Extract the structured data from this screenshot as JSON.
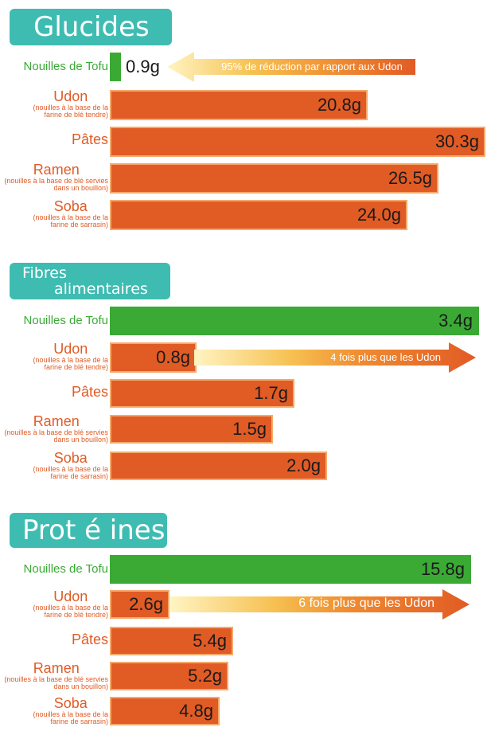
{
  "chart_data": [
    {
      "type": "bar",
      "title": "Glucides",
      "unit": "g",
      "categories": [
        "Nouilles de Tofu",
        "Udon",
        "Pâtes",
        "Ramen",
        "Soba"
      ],
      "subtitles": [
        "",
        "(nouilles à la base de la farine de blé tendre)",
        "",
        "(nouilles à la base de blé servies dans un bouillon)",
        "(nouilles à la base de la farine de sarrasin)"
      ],
      "values": [
        0.9,
        20.8,
        30.3,
        26.5,
        24.0
      ],
      "value_labels": [
        "0.9g",
        "20.8g",
        "30.3g",
        "26.5g",
        "24.0g"
      ],
      "annotation": "95% de réduction par rapport aux Udon",
      "colors": [
        "#3aaa35",
        "#e15b25",
        "#e15b25",
        "#e15b25",
        "#e15b25"
      ]
    },
    {
      "type": "bar",
      "title": "Fibres alimentaires",
      "title_lines": [
        "Fibres",
        "alimentaires"
      ],
      "unit": "g",
      "categories": [
        "Nouilles de Tofu",
        "Udon",
        "Pâtes",
        "Ramen",
        "Soba"
      ],
      "subtitles": [
        "",
        "(nouilles à la base de la farine de blé tendre)",
        "",
        "(nouilles à la base de blé servies dans un bouillon)",
        "(nouilles à la base de la farine de sarrasin)"
      ],
      "values": [
        3.4,
        0.8,
        1.7,
        1.5,
        2.0
      ],
      "value_labels": [
        "3.4g",
        "0.8g",
        "1.7g",
        "1.5g",
        "2.0g"
      ],
      "annotation": "4 fois plus que les Udon",
      "colors": [
        "#3aaa35",
        "#e15b25",
        "#e15b25",
        "#e15b25",
        "#e15b25"
      ]
    },
    {
      "type": "bar",
      "title": "Prot é ines",
      "unit": "g",
      "categories": [
        "Nouilles de Tofu",
        "Udon",
        "Pâtes",
        "Ramen",
        "Soba"
      ],
      "subtitles": [
        "",
        "(nouilles à la base de la farine de blé tendre)",
        "",
        "(nouilles à la base de blé servies dans un bouillon)",
        "(nouilles à la base de la farine de sarrasin)"
      ],
      "values": [
        15.8,
        2.6,
        5.4,
        5.2,
        4.8
      ],
      "value_labels": [
        "15.8g",
        "2.6g",
        "5.4g",
        "5.2g",
        "4.8g"
      ],
      "annotation": "6 fois plus que les Udon",
      "colors": [
        "#3aaa35",
        "#e15b25",
        "#e15b25",
        "#e15b25",
        "#e15b25"
      ]
    }
  ]
}
